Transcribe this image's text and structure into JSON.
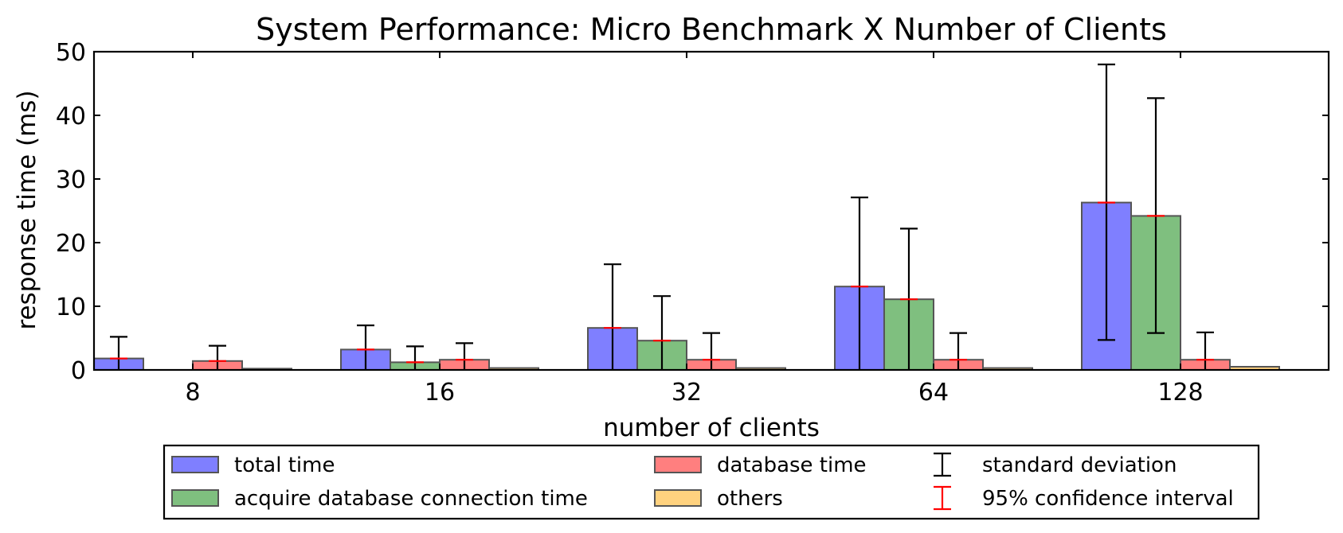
{
  "chart_data": {
    "type": "bar",
    "title": "System Performance: Micro Benchmark X Number of Clients",
    "xlabel": "number of clients",
    "ylabel": "response time (ms)",
    "categories": [
      "8",
      "16",
      "32",
      "64",
      "128"
    ],
    "ylim": [
      0,
      50
    ],
    "yticks": [
      "0",
      "10",
      "20",
      "30",
      "40",
      "50"
    ],
    "grid": false,
    "legend_position": "bottom",
    "series": [
      {
        "name": "total time",
        "color": "#7f7fff",
        "values": [
          1.8,
          3.2,
          6.6,
          13.1,
          26.3
        ],
        "std_low": [
          0,
          0,
          0,
          0,
          4.7
        ],
        "std_high": [
          5.2,
          7.0,
          16.6,
          27.1,
          48.0
        ]
      },
      {
        "name": "acquire database connection time",
        "color": "#7fbf7f",
        "values": [
          0,
          1.2,
          4.6,
          11.1,
          24.2
        ],
        "std_low": [
          0,
          0,
          0,
          0,
          5.8
        ],
        "std_high": [
          0,
          3.7,
          11.6,
          22.2,
          42.7
        ]
      },
      {
        "name": "database time",
        "color": "#ff7f7f",
        "values": [
          1.4,
          1.6,
          1.6,
          1.6,
          1.6
        ],
        "std_low": [
          0,
          0,
          0,
          0,
          0
        ],
        "std_high": [
          3.8,
          4.2,
          5.8,
          5.8,
          5.9
        ]
      },
      {
        "name": "others",
        "color": "#ffd27f",
        "values": [
          0.2,
          0.3,
          0.3,
          0.3,
          0.5
        ],
        "std_low": [
          0,
          0,
          0,
          0,
          0
        ],
        "std_high": [
          0,
          0,
          0,
          0,
          0
        ]
      }
    ],
    "legend": {
      "std_label": "standard deviation",
      "ci_label": "95% confidence interval",
      "std_color": "#000000",
      "ci_color": "#ff0000"
    }
  }
}
